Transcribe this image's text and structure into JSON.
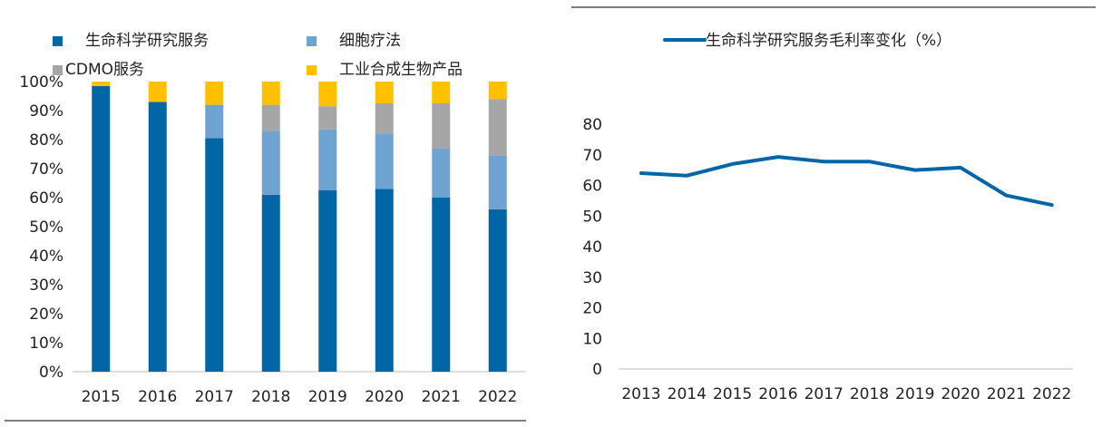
{
  "chart_data": [
    {
      "type": "bar",
      "stacked": true,
      "percent": true,
      "title": "",
      "categories": [
        "2015",
        "2016",
        "2017",
        "2018",
        "2019",
        "2020",
        "2021",
        "2022"
      ],
      "series": [
        {
          "name": "生命科学研究服务",
          "color": "#0066A6",
          "values": [
            98.5,
            93,
            80.5,
            61,
            62.5,
            63,
            60,
            56
          ]
        },
        {
          "name": "细胞疗法",
          "color": "#6FA3D1",
          "values": [
            0,
            0,
            11.5,
            22,
            21,
            19,
            17,
            18.5
          ]
        },
        {
          "name": "CDMO服务",
          "color": "#A6A6A6",
          "values": [
            0,
            0,
            0,
            9,
            8,
            10.5,
            15.5,
            19.5
          ]
        },
        {
          "name": "工业合成生物产品",
          "color": "#FFC000",
          "values": [
            1.5,
            7,
            8,
            8,
            8.5,
            7.5,
            7.5,
            6
          ]
        }
      ],
      "yticks": [
        "0%",
        "10%",
        "20%",
        "30%",
        "40%",
        "50%",
        "60%",
        "70%",
        "80%",
        "90%",
        "100%"
      ],
      "ylim": [
        0,
        100
      ],
      "legend_position": "top",
      "xlabel": "",
      "ylabel": ""
    },
    {
      "type": "line",
      "title": "",
      "x": [
        "2013",
        "2014",
        "2015",
        "2016",
        "2017",
        "2018",
        "2019",
        "2020",
        "2021",
        "2022"
      ],
      "series": [
        {
          "name": "生命科学研究服务毛利率变化（%）",
          "color": "#0066A6",
          "values": [
            64,
            63.2,
            67,
            69.3,
            67.8,
            67.8,
            65,
            65.8,
            56.7,
            53.6
          ]
        }
      ],
      "yticks": [
        "0",
        "10",
        "20",
        "30",
        "40",
        "50",
        "60",
        "70",
        "80"
      ],
      "ylim": [
        0,
        80
      ],
      "legend_position": "top",
      "xlabel": "",
      "ylabel": ""
    }
  ]
}
